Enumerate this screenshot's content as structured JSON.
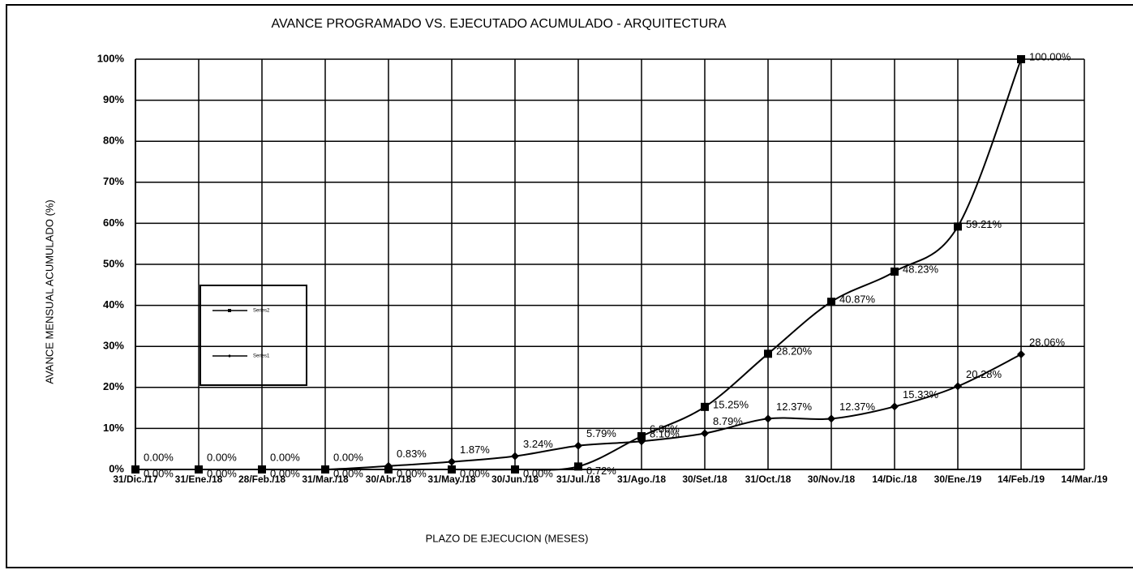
{
  "chart_data": {
    "type": "line",
    "title": "AVANCE PROGRAMADO VS. EJECUTADO ACUMULADO - ARQUITECTURA",
    "x_label": "PLAZO DE EJECUCION  (MESES)",
    "y_label": "AVANCE MENSUAL ACUMULADO (%)",
    "categories": [
      "31/Dic./17",
      "31/Ene./18",
      "28/Feb./18",
      "31/Mar./18",
      "30/Abr./18",
      "31/May./18",
      "30/Jun./18",
      "31/Jul./18",
      "31/Ago./18",
      "30/Set./18",
      "31/Oct./18",
      "30/Nov./18",
      "14/Dic./18",
      "30/Ene./19",
      "14/Feb./19",
      "14/Mar./19"
    ],
    "ylim": [
      0,
      100
    ],
    "yticks": [
      {
        "value": 0,
        "label": "0%"
      },
      {
        "value": 10,
        "label": "10%"
      },
      {
        "value": 20,
        "label": "20%"
      },
      {
        "value": 30,
        "label": "30%"
      },
      {
        "value": 40,
        "label": "40%"
      },
      {
        "value": 50,
        "label": "50%"
      },
      {
        "value": 60,
        "label": "60%"
      },
      {
        "value": 70,
        "label": "70%"
      },
      {
        "value": 80,
        "label": "80%"
      },
      {
        "value": 90,
        "label": "90%"
      },
      {
        "value": 100,
        "label": "100%"
      }
    ],
    "grid": true,
    "series": [
      {
        "name": "Series2",
        "color": "#000000",
        "marker": "square",
        "values": [
          0,
          0,
          0,
          0,
          0,
          0,
          0,
          0.72,
          8.1,
          15.25,
          28.2,
          40.87,
          48.23,
          59.21,
          100,
          null
        ],
        "value_labels": [
          "0.00%",
          "0.00%",
          "0.00%",
          "0.00%",
          "0.00%",
          "0.00%",
          "0.00%",
          "0.72%",
          "8.10%",
          "15.25%",
          "28.20%",
          "40.87%",
          "48.23%",
          "59.21%",
          "100.00%",
          null
        ]
      },
      {
        "name": "Series1",
        "color": "#000000",
        "marker": "diamond",
        "values": [
          0,
          0,
          0,
          0,
          0.83,
          1.87,
          3.24,
          5.79,
          6.86,
          8.79,
          12.37,
          12.37,
          15.33,
          20.28,
          28.06,
          null
        ],
        "value_labels": [
          "0.00%",
          "0.00%",
          "0.00%",
          "0.00%",
          "0.83%",
          "1.87%",
          "3.24%",
          "5.79%",
          "6.86%",
          "8.79%",
          "12.37%",
          "12.37%",
          "15.33%",
          "20.28%",
          "28.06%",
          null
        ]
      }
    ]
  }
}
